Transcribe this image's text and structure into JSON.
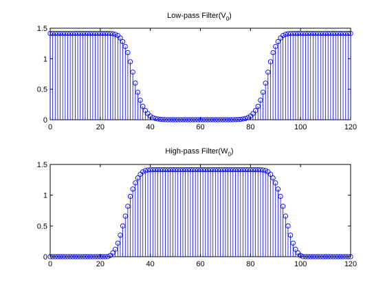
{
  "chart_data": [
    {
      "type": "stem",
      "title": "Low-pass Filter(V",
      "title_sub": "0",
      "title_close": ")",
      "xlim": [
        0,
        120
      ],
      "ylim": [
        0,
        1.5
      ],
      "xticks": [
        "0",
        "20",
        "40",
        "60",
        "80",
        "100",
        "120"
      ],
      "yticks": [
        "0",
        "0.5",
        "1",
        "1.5"
      ],
      "x": [
        0,
        1,
        2,
        3,
        4,
        5,
        6,
        7,
        8,
        9,
        10,
        11,
        12,
        13,
        14,
        15,
        16,
        17,
        18,
        19,
        20,
        21,
        22,
        23,
        24,
        25,
        26,
        27,
        28,
        29,
        30,
        31,
        32,
        33,
        34,
        35,
        36,
        37,
        38,
        39,
        40,
        41,
        42,
        43,
        44,
        45,
        46,
        47,
        48,
        49,
        50,
        51,
        52,
        53,
        54,
        55,
        56,
        57,
        58,
        59,
        60,
        61,
        62,
        63,
        64,
        65,
        66,
        67,
        68,
        69,
        70,
        71,
        72,
        73,
        74,
        75,
        76,
        77,
        78,
        79,
        80,
        81,
        82,
        83,
        84,
        85,
        86,
        87,
        88,
        89,
        90,
        91,
        92,
        93,
        94,
        95,
        96,
        97,
        98,
        99,
        100,
        101,
        102,
        103,
        104,
        105,
        106,
        107,
        108,
        109,
        110,
        111,
        112,
        113,
        114,
        115,
        116,
        117,
        118,
        119,
        120
      ],
      "values": [
        1.414,
        1.414,
        1.414,
        1.414,
        1.414,
        1.414,
        1.414,
        1.414,
        1.414,
        1.414,
        1.414,
        1.414,
        1.414,
        1.414,
        1.414,
        1.414,
        1.414,
        1.414,
        1.414,
        1.414,
        1.414,
        1.414,
        1.414,
        1.414,
        1.413,
        1.41,
        1.4,
        1.38,
        1.34,
        1.28,
        1.2,
        1.1,
        0.95,
        0.78,
        0.6,
        0.45,
        0.32,
        0.22,
        0.15,
        0.1,
        0.06,
        0.035,
        0.02,
        0.012,
        0.006,
        0.003,
        0.001,
        0.0,
        0.0,
        0.0,
        0.0,
        0.0,
        0.0,
        0.0,
        0.0,
        0.0,
        0.0,
        0.0,
        0.0,
        0.0,
        0.0,
        0.0,
        0.0,
        0.0,
        0.0,
        0.0,
        0.0,
        0.0,
        0.0,
        0.0,
        0.0,
        0.0,
        0.0,
        0.0,
        0.001,
        0.003,
        0.006,
        0.012,
        0.02,
        0.035,
        0.06,
        0.1,
        0.15,
        0.22,
        0.32,
        0.45,
        0.6,
        0.78,
        0.95,
        1.1,
        1.2,
        1.28,
        1.34,
        1.38,
        1.4,
        1.41,
        1.413,
        1.414,
        1.414,
        1.414,
        1.414,
        1.414,
        1.414,
        1.414,
        1.414,
        1.414,
        1.414,
        1.414,
        1.414,
        1.414,
        1.414,
        1.414,
        1.414,
        1.414,
        1.414,
        1.414,
        1.414,
        1.414,
        1.414,
        1.414,
        1.414
      ]
    },
    {
      "type": "stem",
      "title": "High-pass Filter(W",
      "title_sub": "0",
      "title_close": ")",
      "xlim": [
        0,
        120
      ],
      "ylim": [
        0,
        1.5
      ],
      "xticks": [
        "0",
        "20",
        "40",
        "60",
        "80",
        "100",
        "120"
      ],
      "yticks": [
        "0",
        "0.5",
        "1",
        "1.5"
      ],
      "x": [
        0,
        1,
        2,
        3,
        4,
        5,
        6,
        7,
        8,
        9,
        10,
        11,
        12,
        13,
        14,
        15,
        16,
        17,
        18,
        19,
        20,
        21,
        22,
        23,
        24,
        25,
        26,
        27,
        28,
        29,
        30,
        31,
        32,
        33,
        34,
        35,
        36,
        37,
        38,
        39,
        40,
        41,
        42,
        43,
        44,
        45,
        46,
        47,
        48,
        49,
        50,
        51,
        52,
        53,
        54,
        55,
        56,
        57,
        58,
        59,
        60,
        61,
        62,
        63,
        64,
        65,
        66,
        67,
        68,
        69,
        70,
        71,
        72,
        73,
        74,
        75,
        76,
        77,
        78,
        79,
        80,
        81,
        82,
        83,
        84,
        85,
        86,
        87,
        88,
        89,
        90,
        91,
        92,
        93,
        94,
        95,
        96,
        97,
        98,
        99,
        100,
        101,
        102,
        103,
        104,
        105,
        106,
        107,
        108,
        109,
        110,
        111,
        112,
        113,
        114,
        115,
        116,
        117,
        118,
        119,
        120
      ],
      "values": [
        0.0,
        0.0,
        0.0,
        0.0,
        0.0,
        0.0,
        0.0,
        0.0,
        0.0,
        0.0,
        0.0,
        0.0,
        0.0,
        0.0,
        0.0,
        0.0,
        0.0,
        0.0,
        0.0,
        0.0,
        0.0,
        0.0,
        0.0,
        0.001,
        0.02,
        0.06,
        0.12,
        0.22,
        0.35,
        0.5,
        0.66,
        0.82,
        0.98,
        1.1,
        1.2,
        1.28,
        1.34,
        1.38,
        1.4,
        1.41,
        1.413,
        1.414,
        1.414,
        1.414,
        1.414,
        1.414,
        1.414,
        1.414,
        1.414,
        1.414,
        1.414,
        1.414,
        1.414,
        1.414,
        1.414,
        1.414,
        1.414,
        1.414,
        1.414,
        1.414,
        1.414,
        1.414,
        1.414,
        1.414,
        1.414,
        1.414,
        1.414,
        1.414,
        1.414,
        1.414,
        1.414,
        1.414,
        1.414,
        1.414,
        1.414,
        1.414,
        1.414,
        1.414,
        1.414,
        1.414,
        1.414,
        1.414,
        1.414,
        1.414,
        1.413,
        1.41,
        1.4,
        1.38,
        1.34,
        1.28,
        1.2,
        1.1,
        0.98,
        0.82,
        0.66,
        0.5,
        0.35,
        0.22,
        0.12,
        0.06,
        0.02,
        0.001,
        0.0,
        0.0,
        0.0,
        0.0,
        0.0,
        0.0,
        0.0,
        0.0,
        0.0,
        0.0,
        0.0,
        0.0,
        0.0,
        0.0,
        0.0,
        0.0,
        0.0,
        0.0,
        0.0
      ]
    }
  ],
  "colors": {
    "stem": "#0000ff",
    "axis": "#000000",
    "background": "#ffffff"
  }
}
